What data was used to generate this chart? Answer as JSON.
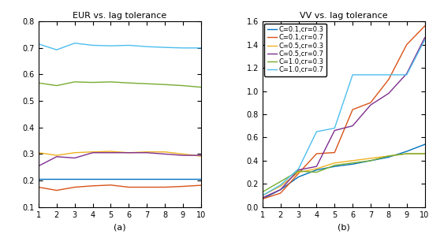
{
  "x": [
    1,
    2,
    3,
    4,
    5,
    6,
    7,
    8,
    9,
    10
  ],
  "title_a": "EUR vs. lag tolerance",
  "title_b": "VV vs. lag tolerance",
  "xlabel_a": "(a)",
  "xlabel_b": "(b)",
  "ylim_a": [
    0.1,
    0.8
  ],
  "ylim_b": [
    0.0,
    1.6
  ],
  "eur_lines": {
    "C0.1_cr0.3": [
      0.205,
      0.205,
      0.205,
      0.205,
      0.205,
      0.205,
      0.205,
      0.205,
      0.205,
      0.205
    ],
    "C0.1_cr0.7": [
      0.175,
      0.163,
      0.175,
      0.18,
      0.183,
      0.175,
      0.175,
      0.175,
      0.178,
      0.182
    ],
    "C0.5_cr0.3": [
      0.305,
      0.295,
      0.305,
      0.308,
      0.31,
      0.305,
      0.308,
      0.308,
      0.3,
      0.292
    ],
    "C0.5_cr0.7": [
      0.255,
      0.29,
      0.285,
      0.305,
      0.305,
      0.305,
      0.305,
      0.3,
      0.295,
      0.295
    ],
    "C1.0_cr0.3": [
      0.568,
      0.558,
      0.572,
      0.57,
      0.572,
      0.568,
      0.565,
      0.562,
      0.558,
      0.552
    ],
    "C1.0_cr0.7": [
      0.715,
      0.693,
      0.718,
      0.71,
      0.708,
      0.71,
      0.705,
      0.702,
      0.7,
      0.7
    ]
  },
  "vv_lines": {
    "C0.1_cr0.3": [
      0.07,
      0.15,
      0.26,
      0.32,
      0.35,
      0.37,
      0.4,
      0.43,
      0.48,
      0.54
    ],
    "C0.1_cr0.7": [
      0.07,
      0.12,
      0.29,
      0.46,
      0.47,
      0.84,
      0.9,
      1.1,
      1.4,
      1.56
    ],
    "C0.5_cr0.3": [
      0.1,
      0.18,
      0.3,
      0.33,
      0.38,
      0.4,
      0.42,
      0.44,
      0.46,
      0.46
    ],
    "C0.5_cr0.7": [
      0.08,
      0.15,
      0.32,
      0.35,
      0.66,
      0.7,
      0.88,
      0.98,
      1.15,
      1.46
    ],
    "C1.0_cr0.3": [
      0.13,
      0.22,
      0.31,
      0.3,
      0.36,
      0.38,
      0.4,
      0.44,
      0.46,
      0.46
    ],
    "C1.0_cr0.7": [
      0.1,
      0.19,
      0.33,
      0.65,
      0.68,
      1.14,
      1.14,
      1.14,
      1.14,
      1.44
    ]
  },
  "colors": {
    "C0.1_cr0.3": "#0072BD",
    "C0.1_cr0.7": "#D95319",
    "C0.5_cr0.3": "#EDB120",
    "C0.5_cr0.7": "#7E2F8E",
    "C1.0_cr0.3": "#77AC30",
    "C1.0_cr0.7": "#4DBEEE"
  },
  "legend_labels": {
    "C0.1_cr0.3": "C=0.1,cr=0.3",
    "C0.1_cr0.7": "C=0.1,cr=0.7",
    "C0.5_cr0.3": "C=0.5,cr=0.3",
    "C0.5_cr0.7": "C=0.5,cr=0.7",
    "C1.0_cr0.3": "C=1.0,cr=0.3",
    "C1.0_cr0.7": "C=1.0,cr=0.7"
  },
  "figsize": [
    5.44,
    3.02
  ],
  "dpi": 100
}
